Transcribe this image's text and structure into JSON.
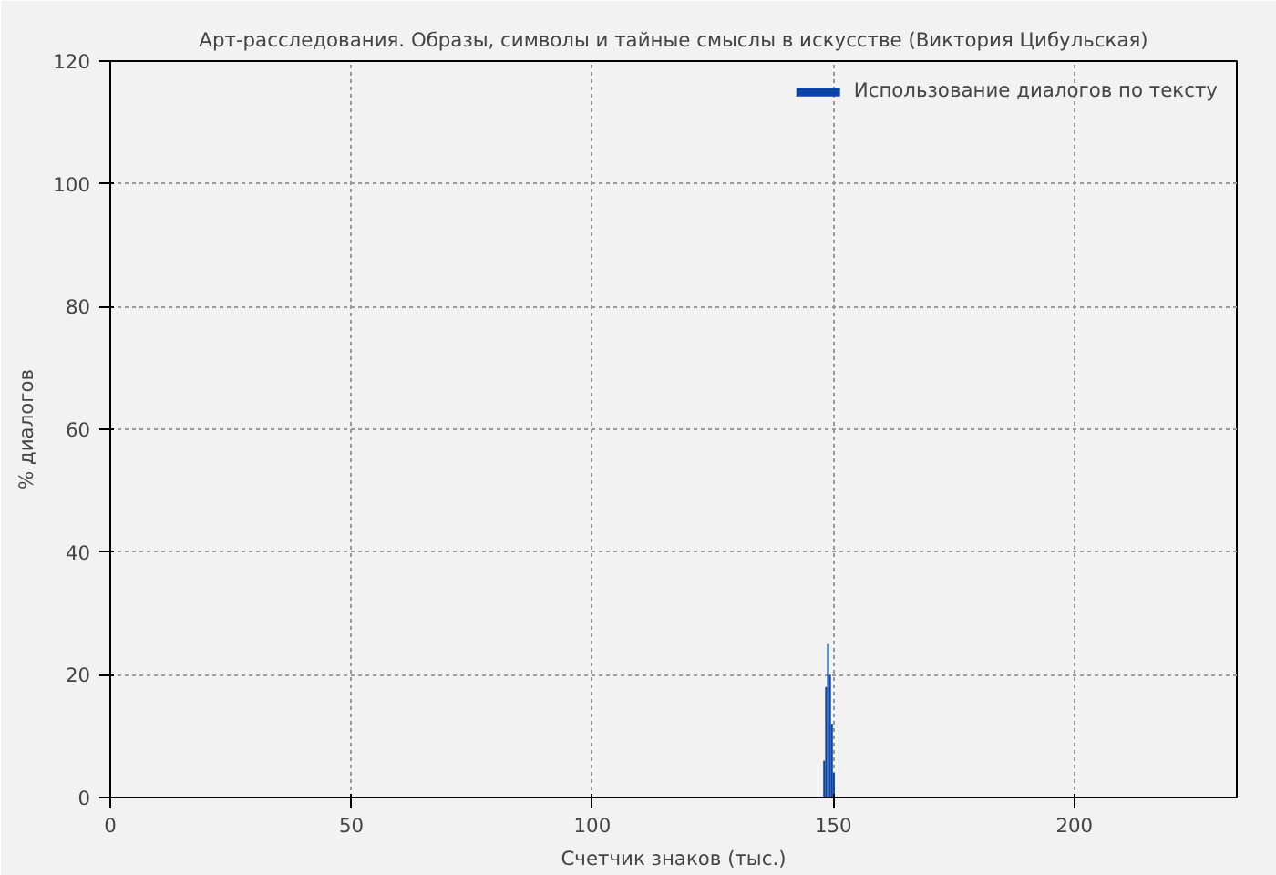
{
  "chart_data": {
    "type": "bar",
    "title": "Арт-расследования. Образы, символы и тайные смыслы в искусстве (Виктория Цибульская)",
    "xlabel": "Счетчик знаков (тыс.)",
    "ylabel": "% диалогов",
    "x": [
      148.1,
      148.5,
      148.9,
      149.3,
      149.7,
      150.1
    ],
    "series": [
      {
        "name": "Использование диалогов по тексту",
        "color": "#0b44a6",
        "values": [
          6,
          18,
          25,
          20,
          12,
          4
        ]
      }
    ],
    "xlim": [
      0,
      233.7
    ],
    "ylim": [
      0,
      120
    ],
    "xticks": [
      0,
      50,
      100,
      150,
      200
    ],
    "yticks": [
      0,
      20,
      40,
      60,
      80,
      100,
      120
    ],
    "grid": true,
    "legend": "top right"
  }
}
